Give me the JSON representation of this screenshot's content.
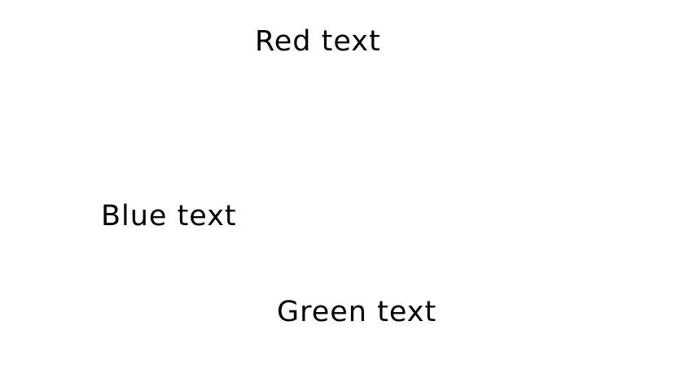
{
  "labels": {
    "red": "Red text",
    "blue": "Blue text",
    "green": "Green text"
  },
  "colors": {
    "text": "#000000",
    "background": "#ffffff"
  }
}
